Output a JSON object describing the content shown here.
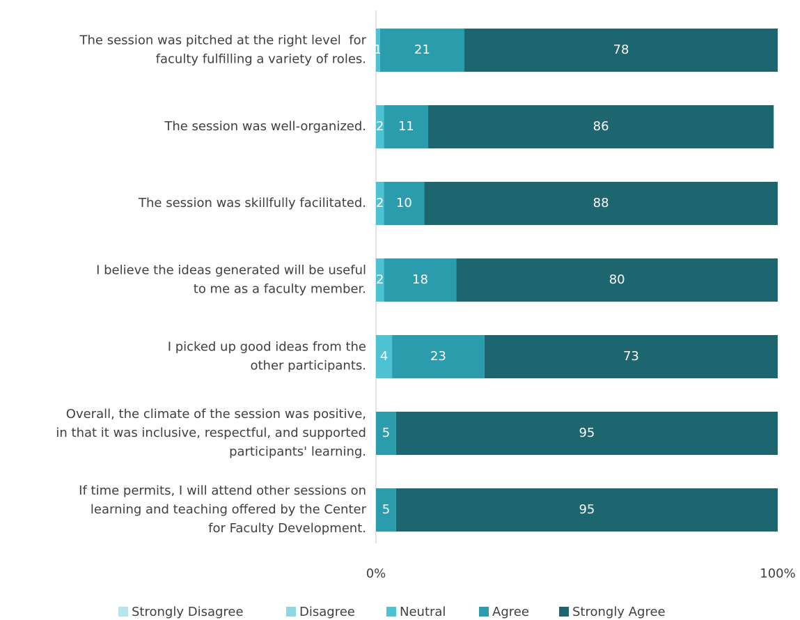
{
  "chart_data": {
    "type": "stacked_bar_horizontal",
    "categories": [
      [
        "The session was pitched at the right level  for",
        "faculty fulfilling a variety of roles."
      ],
      [
        "The session was well-organized."
      ],
      [
        "The session was skillfully facilitated."
      ],
      [
        "I believe the ideas generated will be useful",
        "to me as a faculty member."
      ],
      [
        "I picked up good ideas from the",
        "other participants."
      ],
      [
        "Overall, the climate of the session was positive,",
        "in that it was inclusive, respectful, and supported",
        "participants' learning."
      ],
      [
        "If time permits, I will attend other sessions on",
        "learning and teaching offered by the Center",
        "for Faculty Development."
      ]
    ],
    "series": [
      {
        "name": "Strongly Disagree",
        "color": "#b5e5ec",
        "values": [
          null,
          null,
          null,
          null,
          null,
          null,
          null
        ]
      },
      {
        "name": "Disagree",
        "color": "#8dd7e0",
        "values": [
          null,
          null,
          null,
          null,
          null,
          null,
          null
        ]
      },
      {
        "name": "Neutral",
        "color": "#4cc2d2",
        "values": [
          1,
          2,
          2,
          2,
          4,
          null,
          null
        ]
      },
      {
        "name": "Agree",
        "color": "#2b9cac",
        "values": [
          21,
          11,
          10,
          18,
          23,
          5,
          5
        ]
      },
      {
        "name": "Strongly Agree",
        "color": "#1d6670",
        "values": [
          78,
          86,
          88,
          80,
          73,
          95,
          95
        ]
      }
    ],
    "xlim": [
      0,
      100
    ],
    "xticks": [
      {
        "value": 0,
        "label": "0%"
      },
      {
        "value": 100,
        "label": "100%"
      }
    ],
    "legend": "bottom"
  }
}
